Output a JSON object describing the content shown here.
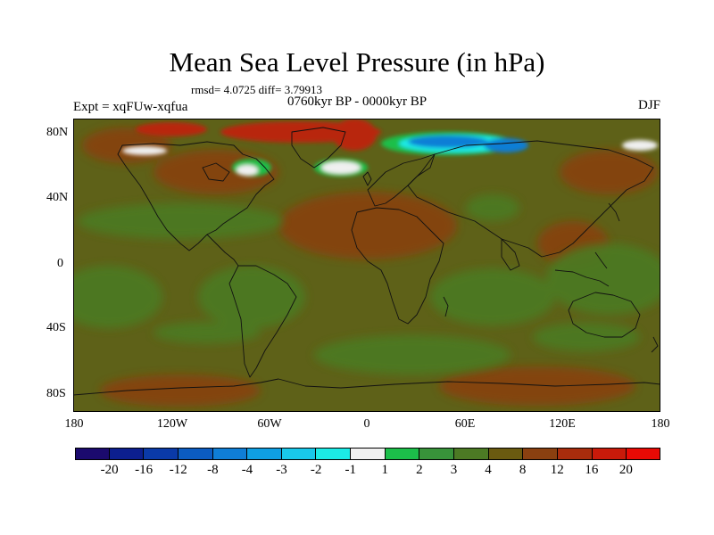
{
  "title": "Mean Sea Level Pressure (in hPa)",
  "stats": "rmsd= 4.0725 diff= 3.79913",
  "period": "0760kyr BP - 0000kyr BP",
  "expt": "Expt = xqFUw-xqfua",
  "season": "DJF",
  "axes": {
    "lat_labels": [
      "80N",
      "40N",
      "0",
      "40S",
      "80S"
    ],
    "lon_labels": [
      "180",
      "120W",
      "60W",
      "0",
      "60E",
      "120E",
      "180"
    ]
  },
  "colorbar": {
    "labels": [
      "-20",
      "-16",
      "-12",
      "-8",
      "-4",
      "-3",
      "-2",
      "-1",
      "1",
      "2",
      "3",
      "4",
      "8",
      "12",
      "16",
      "20"
    ],
    "colors": [
      "#1b0a6e",
      "#0c1f8f",
      "#0a3aa8",
      "#0b5cc2",
      "#0f7ed6",
      "#0f9fe3",
      "#19c8ea",
      "#1cebe6",
      "#f0f0f0",
      "#1cbf4a",
      "#38933a",
      "#4c7a24",
      "#6a5a10",
      "#8a4010",
      "#a82c0c",
      "#c81a0a",
      "#e80a05"
    ]
  },
  "colors": {
    "background_field": "#5e6118",
    "green_field": "#4c7a24",
    "warm_field": "#8a4010",
    "high_field": "#b8260a"
  }
}
